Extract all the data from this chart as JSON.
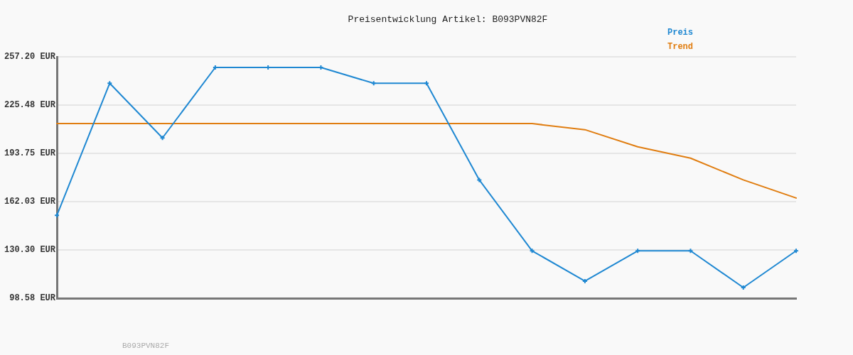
{
  "chart_data": {
    "type": "line",
    "title": "Preisentwicklung Artikel: B093PVN82F",
    "categories": [
      null,
      null,
      null,
      null,
      null,
      null,
      null,
      null,
      null,
      null,
      null,
      null,
      null,
      null,
      null
    ],
    "series": [
      {
        "name": "Preis",
        "color": "#1f88d2",
        "marker": "cross",
        "values": [
          153.0,
          239.8,
          203.9,
          250.2,
          250.2,
          250.2,
          239.8,
          239.8,
          176.3,
          129.7,
          109.8,
          129.7,
          129.7,
          105.6,
          129.7
        ]
      },
      {
        "name": "Trend",
        "color": "#e07d10",
        "marker": "none",
        "values": [
          213.3,
          213.3,
          213.3,
          213.3,
          213.3,
          213.3,
          213.3,
          213.3,
          213.3,
          213.3,
          209.3,
          198.1,
          190.6,
          176.3,
          164.4
        ]
      }
    ],
    "ylim": [
      98.58,
      257.2
    ],
    "yticks": [
      {
        "value": 98.58,
        "label": "98.58 EUR"
      },
      {
        "value": 130.3,
        "label": "130.30 EUR"
      },
      {
        "value": 162.03,
        "label": "162.03 EUR"
      },
      {
        "value": 193.75,
        "label": "193.75 EUR"
      },
      {
        "value": 225.48,
        "label": "225.48 EUR"
      },
      {
        "value": 257.2,
        "label": "257.20 EUR"
      }
    ],
    "grid": "y",
    "tick_labels": "y",
    "legend": "top right",
    "annotations": [
      "B093PVN82F"
    ]
  }
}
